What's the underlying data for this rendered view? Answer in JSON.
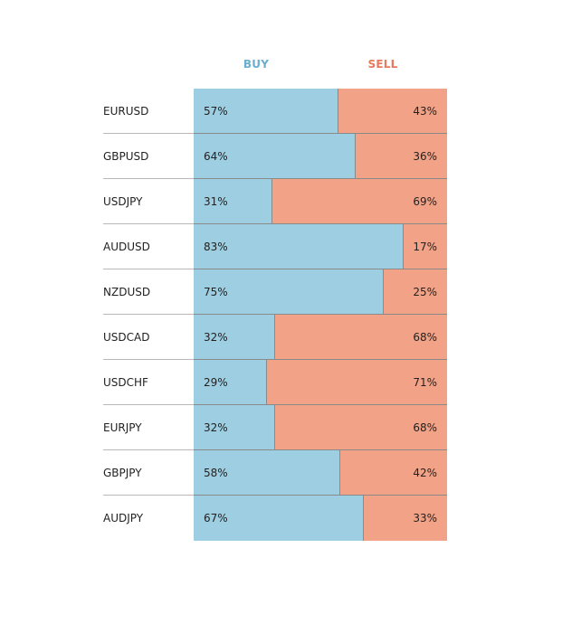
{
  "colors": {
    "buy": "#9ecee2",
    "sell": "#f2a387",
    "buy_text": "#6aafcf",
    "sell_text": "#e8795c"
  },
  "header": {
    "buy_label": "BUY",
    "sell_label": "SELL"
  },
  "chart_data": {
    "type": "bar",
    "stacked": true,
    "orientation": "horizontal",
    "categories": [
      "EURUSD",
      "GBPUSD",
      "USDJPY",
      "AUDUSD",
      "NZDUSD",
      "USDCAD",
      "USDCHF",
      "EURJPY",
      "GBPJPY",
      "AUDJPY"
    ],
    "series": [
      {
        "name": "BUY",
        "values": [
          57,
          64,
          31,
          83,
          75,
          32,
          29,
          32,
          58,
          67
        ]
      },
      {
        "name": "SELL",
        "values": [
          43,
          36,
          69,
          17,
          25,
          68,
          71,
          68,
          42,
          33
        ]
      }
    ],
    "labels_buy": [
      "57%",
      "64%",
      "31%",
      "83%",
      "75%",
      "32%",
      "29%",
      "32%",
      "58%",
      "67%"
    ],
    "labels_sell": [
      "43%",
      "36%",
      "69%",
      "17%",
      "25%",
      "68%",
      "71%",
      "68%",
      "42%",
      "33%"
    ],
    "xlim": [
      0,
      100
    ]
  }
}
